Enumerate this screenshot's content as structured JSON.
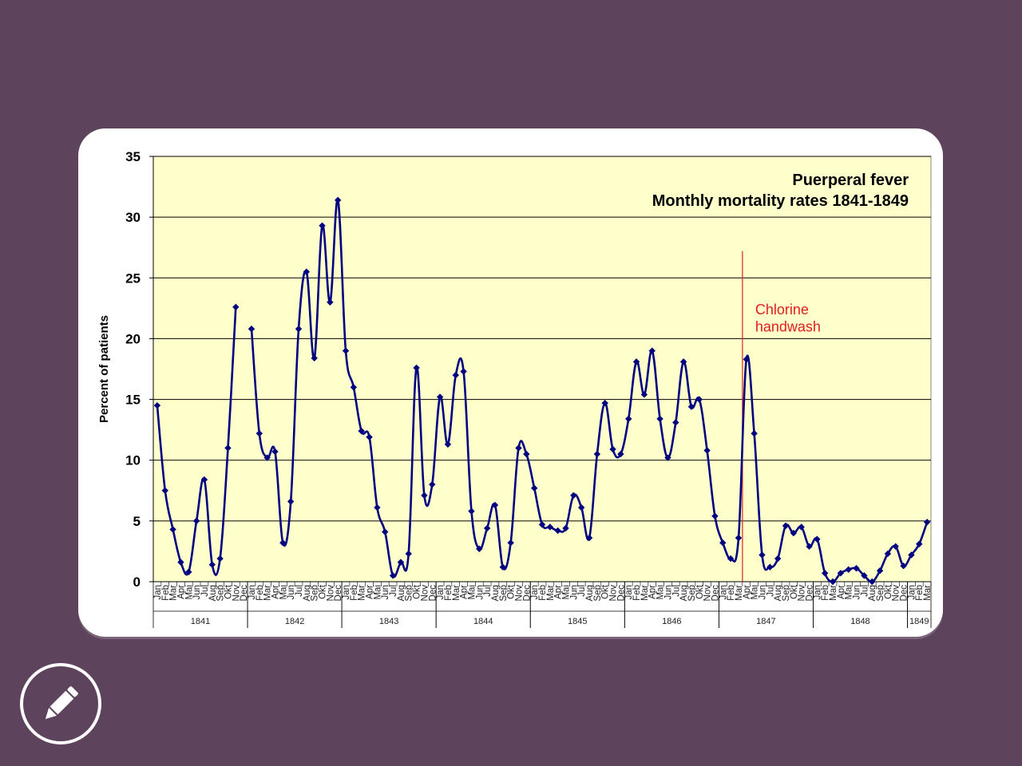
{
  "colors": {
    "background": "#5e435d",
    "plot_area": "#ffffcc",
    "series_line": "#000080",
    "annotation": "#e02020"
  },
  "icons": {
    "edit": "pencil-icon"
  },
  "chart_data": {
    "type": "line",
    "title": "Puerperal fever",
    "subtitle": "Monthly mortality rates 1841-1849",
    "ylabel": "Percent of patients",
    "xlabel": "",
    "ylim": [
      0,
      35
    ],
    "yticks": [
      0,
      5,
      10,
      15,
      20,
      25,
      30,
      35
    ],
    "grid": "horizontal",
    "annotation": {
      "text_lines": [
        "Chlorine",
        "handwash"
      ],
      "at_index": 75
    },
    "month_labels": [
      "Jan",
      "Feb",
      "Mar",
      "Apr",
      "Mai",
      "Jun",
      "Jul",
      "Aug",
      "Sep",
      "Okt",
      "Nov",
      "Dec"
    ],
    "years": [
      {
        "label": "1841",
        "start": 0,
        "months": 12
      },
      {
        "label": "1842",
        "start": 12,
        "months": 12
      },
      {
        "label": "1843",
        "start": 24,
        "months": 12
      },
      {
        "label": "1844",
        "start": 36,
        "months": 12
      },
      {
        "label": "1845",
        "start": 48,
        "months": 12
      },
      {
        "label": "1846",
        "start": 60,
        "months": 12
      },
      {
        "label": "1847",
        "start": 72,
        "months": 12
      },
      {
        "label": "1848",
        "start": 84,
        "months": 12
      },
      {
        "label": "1849",
        "start": 96,
        "months": 3
      }
    ],
    "series": [
      {
        "values": [
          14.5,
          7.5,
          4.3,
          1.6,
          0.8,
          5.0,
          8.4,
          1.4,
          1.9,
          11.0,
          22.6,
          null,
          20.8,
          12.2,
          10.2,
          10.7,
          3.2,
          6.6,
          20.8,
          25.5,
          18.4,
          29.3,
          23.0,
          31.4,
          19.0,
          16.0,
          12.4,
          11.9,
          6.1,
          4.1,
          0.5,
          1.6,
          2.3,
          17.6,
          7.1,
          8.0,
          15.2,
          11.3,
          17.0,
          17.3,
          5.8,
          2.7,
          4.4,
          6.3,
          1.2,
          3.2,
          11.0,
          10.5,
          7.7,
          4.7,
          4.5,
          4.2,
          4.4,
          7.1,
          6.1,
          3.6,
          10.5,
          14.7,
          10.9,
          10.5,
          13.4,
          18.1,
          15.4,
          19.0,
          13.4,
          10.2,
          13.1,
          18.1,
          14.4,
          15.0,
          10.8,
          5.4,
          3.2,
          1.9,
          3.6,
          18.3,
          12.2,
          2.2,
          1.2,
          1.9,
          4.6,
          4.0,
          4.5,
          2.9,
          3.5,
          0.7,
          0.0,
          0.7,
          1.0,
          1.1,
          0.5,
          0.0,
          0.9,
          2.3,
          2.9,
          1.3,
          2.2,
          3.1,
          4.9
        ]
      }
    ]
  }
}
